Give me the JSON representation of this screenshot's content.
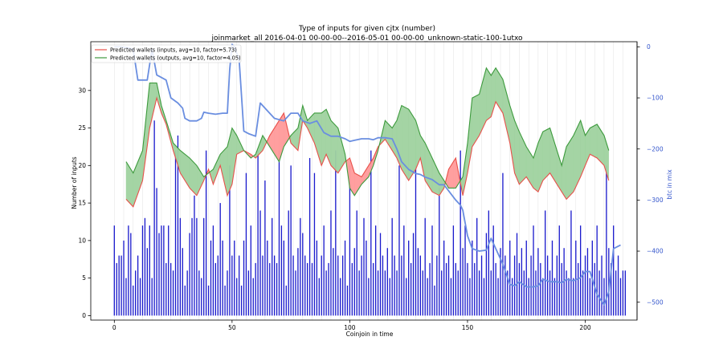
{
  "chart_data": {
    "type": "bar",
    "title": "Type of inputs for given cjtx (number)",
    "subtitle": "joinmarket_all 2016-04-01 00-00-00--2016-05-01 00-00-00_unknown-static-100-1utxo",
    "xlabel": "Coinjoin in time",
    "ylabel": "Number of inputs",
    "y2label": "btc in mix",
    "xlim": [
      -10,
      222
    ],
    "ylim": [
      -0.6,
      36.5
    ],
    "y2lim": [
      -535,
      10
    ],
    "xticks": [
      0,
      50,
      100,
      150,
      200
    ],
    "yticks": [
      0,
      5,
      10,
      15,
      20,
      25,
      30
    ],
    "y2ticks": [
      0,
      -100,
      -200,
      -300,
      -400,
      -500
    ],
    "y2ticklabels": [
      "0",
      "−100",
      "−200",
      "−300",
      "−400",
      "−500"
    ],
    "grid": "vertical lines at coinjoin positions",
    "legend_position": "top-left",
    "legend": [
      {
        "label": "Predicted wallets (inputs, avg=10, factor=5.73)",
        "color": "#e8504a"
      },
      {
        "label": "Predicted wallets (outputs, avg=10, factor=4.05)",
        "color": "#3d9a3d"
      }
    ],
    "colors": {
      "bars": "#1a1acc",
      "inputs_line": "#e8504a",
      "inputs_fill": "#ff9a9a",
      "outputs_line": "#3d9a3d",
      "outputs_fill": "#9fd29f",
      "btc_line": "#6a8ee0",
      "y2_axis": "#3355cc"
    },
    "series": [
      {
        "name": "Predicted wallets (inputs, avg=10, factor=5.73)",
        "x": [
          5,
          8,
          12,
          15,
          18,
          20,
          22,
          25,
          28,
          32,
          35,
          38,
          40,
          42,
          45,
          48,
          50,
          52,
          55,
          58,
          60,
          63,
          66,
          70,
          72,
          75,
          78,
          80,
          82,
          85,
          88,
          90,
          92,
          95,
          98,
          100,
          102,
          105,
          108,
          110,
          112,
          115,
          118,
          120,
          122,
          125,
          128,
          130,
          132,
          135,
          138,
          140,
          142,
          145,
          148,
          150,
          152,
          155,
          158,
          160,
          162,
          165,
          168,
          170,
          172,
          175,
          178,
          180,
          182,
          185,
          188,
          190,
          192,
          195,
          198,
          200,
          202,
          205,
          208,
          210
        ],
        "y": [
          15.5,
          14.5,
          18,
          25,
          29,
          27,
          25.5,
          22,
          19,
          17,
          16,
          18,
          19.5,
          17.5,
          20,
          16,
          17.5,
          21.5,
          22,
          21.5,
          21,
          22,
          24,
          26,
          27,
          23,
          22,
          26,
          25,
          23,
          20,
          21.5,
          20,
          19,
          20.5,
          21,
          19,
          18.5,
          20,
          21,
          22.5,
          23.5,
          22,
          21,
          19.5,
          18,
          19.5,
          21,
          18,
          16.5,
          16,
          17,
          19.5,
          21,
          16,
          19,
          22.5,
          24,
          26,
          26.5,
          28.5,
          27,
          23,
          19,
          17.5,
          18.5,
          17,
          16.5,
          18,
          19,
          17.5,
          16.5,
          15.5,
          16.5,
          18.5,
          20,
          21.5,
          21,
          20,
          18
        ]
      },
      {
        "name": "Predicted wallets (outputs, avg=10, factor=4.05)",
        "x": [
          5,
          8,
          12,
          15,
          18,
          20,
          22,
          25,
          28,
          32,
          35,
          38,
          40,
          42,
          45,
          48,
          50,
          52,
          55,
          58,
          60,
          63,
          66,
          70,
          72,
          75,
          78,
          80,
          82,
          85,
          88,
          90,
          92,
          95,
          98,
          100,
          102,
          105,
          108,
          110,
          112,
          115,
          118,
          120,
          122,
          125,
          128,
          130,
          132,
          135,
          138,
          140,
          142,
          145,
          148,
          150,
          152,
          155,
          158,
          160,
          162,
          165,
          168,
          170,
          172,
          175,
          178,
          180,
          182,
          185,
          188,
          190,
          192,
          195,
          198,
          200,
          202,
          205,
          208,
          210
        ],
        "y": [
          20.5,
          19,
          22,
          31,
          31,
          28,
          26,
          23,
          22,
          21,
          20,
          18.5,
          19,
          19.5,
          21.5,
          22.5,
          25,
          24,
          22,
          21,
          21.5,
          24,
          22.5,
          20.5,
          22.5,
          24,
          25,
          28,
          26,
          27,
          27,
          27.5,
          26,
          25,
          21.5,
          17,
          16,
          17.5,
          18.5,
          20,
          22,
          26,
          25,
          26,
          28,
          27.5,
          26,
          24,
          23,
          21,
          19,
          18,
          17,
          17,
          18.5,
          23,
          29,
          29.5,
          33,
          32,
          33,
          31.5,
          28,
          26,
          24.5,
          22.5,
          21,
          23,
          24.5,
          25,
          22,
          20,
          22.5,
          24,
          26,
          24,
          25,
          25.5,
          24,
          22
        ]
      }
    ],
    "btc_in_mix": {
      "x": [
        0,
        3,
        6,
        8,
        10,
        14,
        16,
        18,
        20,
        22,
        24,
        27,
        29,
        30,
        32,
        35,
        37,
        38,
        40,
        43,
        46,
        48,
        49,
        50,
        51,
        53,
        55,
        57,
        60,
        62,
        65,
        68,
        72,
        75,
        78,
        80,
        83,
        86,
        89,
        92,
        95,
        98,
        100,
        102,
        105,
        108,
        110,
        112,
        115,
        118,
        120,
        122,
        125,
        128,
        130,
        132,
        135,
        138,
        140,
        142,
        145,
        147,
        148,
        150,
        152,
        155,
        158,
        160,
        162,
        165,
        168,
        170,
        172,
        175,
        178,
        180,
        182,
        185,
        188,
        190,
        192,
        195,
        198,
        200,
        202,
        205,
        208,
        210,
        212,
        215
      ],
      "y": [
        0,
        0,
        -2,
        -5,
        -65,
        -65,
        -5,
        -55,
        -60,
        -65,
        -100,
        -110,
        -120,
        -140,
        -145,
        -145,
        -140,
        -128,
        -130,
        -132,
        -130,
        -130,
        -45,
        5,
        0,
        -25,
        -165,
        -170,
        -175,
        -110,
        -125,
        -140,
        -145,
        -130,
        -130,
        -145,
        -150,
        -145,
        -168,
        -175,
        -175,
        -180,
        -185,
        -183,
        -180,
        -180,
        -182,
        -178,
        -178,
        -180,
        -200,
        -225,
        -240,
        -248,
        -250,
        -255,
        -260,
        -270,
        -270,
        -282,
        -300,
        -310,
        -320,
        -370,
        -395,
        -400,
        -398,
        -375,
        -395,
        -425,
        -465,
        -468,
        -460,
        -470,
        -470,
        -468,
        -455,
        -460,
        -460,
        -462,
        -455,
        -458,
        -452,
        -440,
        -440,
        -485,
        -505,
        -480,
        -395,
        -388
      ]
    },
    "bars_series_name": "",
    "bars_values": [
      12,
      7,
      8,
      8,
      10,
      5,
      12,
      11,
      4,
      6,
      8,
      5,
      12,
      13,
      9,
      12,
      5,
      26,
      17,
      11,
      12,
      12,
      7,
      12,
      7,
      6,
      22,
      24,
      13,
      9,
      4,
      6,
      11,
      13,
      16,
      13,
      6,
      5,
      13,
      22,
      4,
      10,
      12,
      7,
      8,
      15,
      10,
      4,
      6,
      20,
      8,
      10,
      5,
      8,
      4,
      10,
      19,
      6,
      12,
      5,
      7,
      22,
      14,
      8,
      18,
      10,
      7,
      13,
      8,
      7,
      22,
      12,
      10,
      4,
      14,
      20,
      8,
      6,
      9,
      13,
      11,
      8,
      7,
      21,
      7,
      19,
      10,
      5,
      8,
      12,
      6,
      7,
      14,
      9,
      22,
      8,
      5,
      8,
      10,
      4,
      20,
      7,
      9,
      14,
      6,
      8,
      13,
      10,
      5,
      22,
      7,
      12,
      6,
      11,
      8,
      6,
      9,
      5,
      13,
      8,
      6,
      20,
      8,
      12,
      5,
      10,
      7,
      11,
      20,
      9,
      8,
      6,
      13,
      5,
      7,
      12,
      4,
      8,
      17,
      6,
      10,
      7,
      8,
      5,
      12,
      7,
      6,
      22,
      9,
      12,
      7,
      5,
      10,
      7,
      13,
      6,
      8,
      5,
      11,
      14,
      6,
      12,
      7,
      5,
      9,
      19,
      8,
      6,
      10,
      5,
      8,
      11,
      7,
      9,
      6,
      10,
      5,
      8,
      12,
      6,
      9,
      7,
      5,
      14,
      8,
      6,
      10,
      5,
      8,
      12,
      7,
      9,
      6,
      5,
      14,
      5,
      10,
      7,
      12,
      6,
      8,
      9,
      5,
      10,
      7,
      12,
      6,
      8,
      5,
      20,
      9,
      7,
      12,
      6,
      8,
      5,
      6,
      6
    ]
  }
}
